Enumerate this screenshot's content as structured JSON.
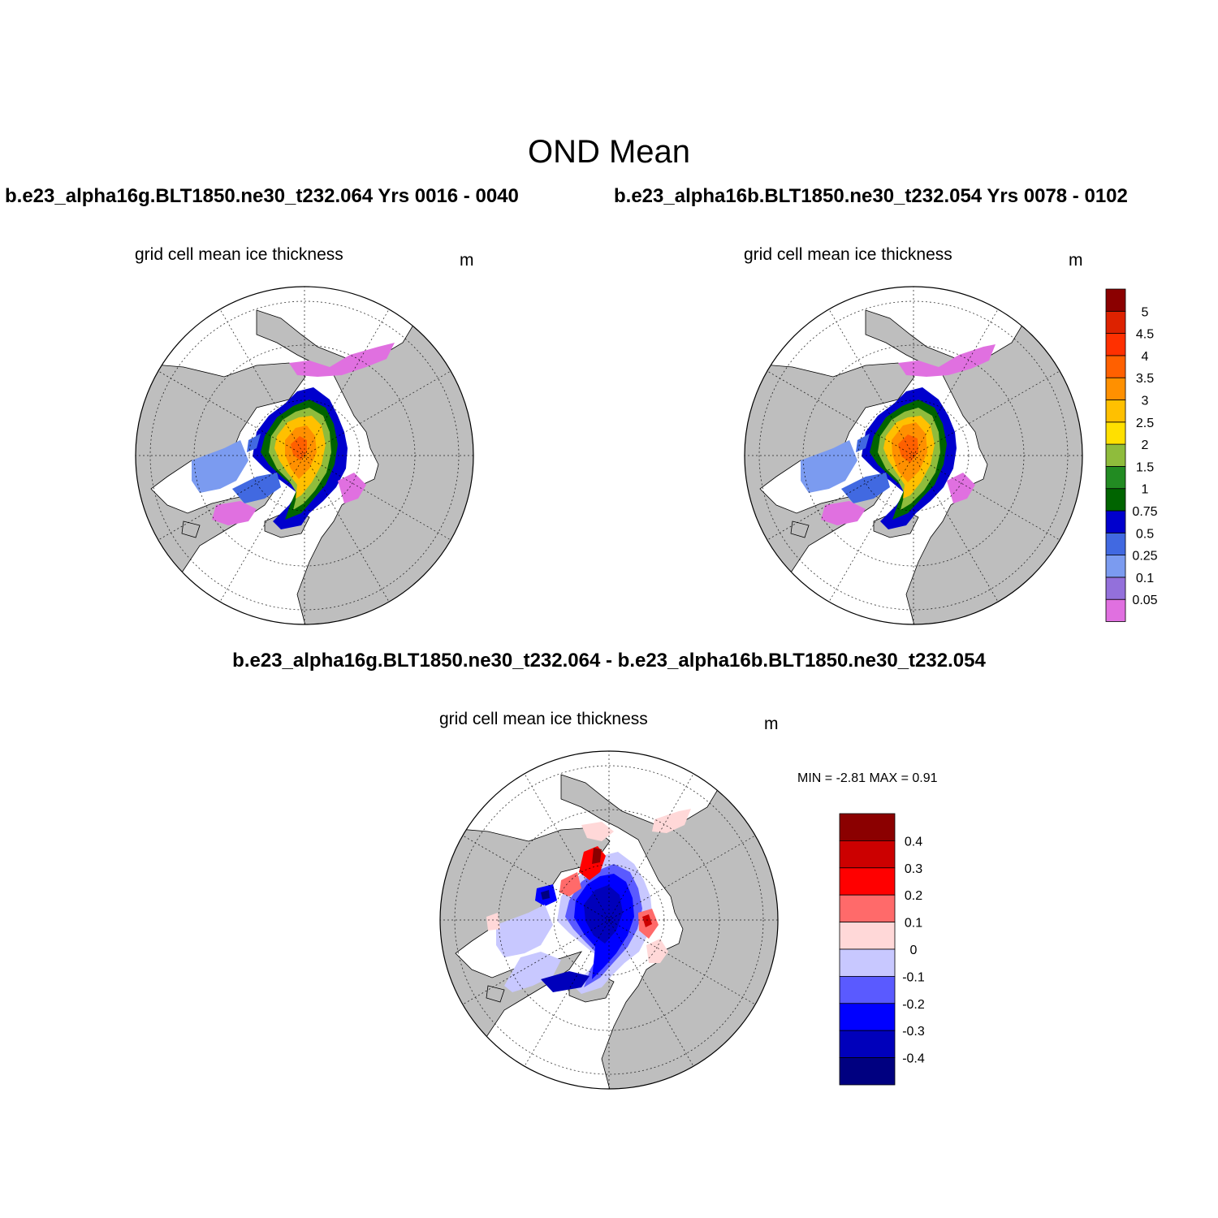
{
  "figure": {
    "title": "OND Mean",
    "left_case": "b.e23_alpha16g.BLT1850.ne30_t232.064  Yrs 0016 - 0040",
    "right_case": "b.e23_alpha16b.BLT1850.ne30_t232.054  Yrs 0078 - 0102",
    "diff_title": "b.e23_alpha16g.BLT1850.ne30_t232.064 - b.e23_alpha16b.BLT1850.ne30_t232.054"
  },
  "panels": {
    "left": {
      "label": "grid cell mean ice thickness",
      "unit": "m"
    },
    "right": {
      "label": "grid cell mean ice thickness",
      "unit": "m"
    },
    "diff": {
      "label": "grid cell mean ice thickness",
      "unit": "m",
      "minmax": "MIN =  -2.81 MAX =   0.91"
    }
  },
  "chart_data": [
    {
      "type": "heatmap",
      "projection": "north polar stereographic",
      "variable": "grid cell mean ice thickness",
      "unit": "m",
      "colorbar": {
        "levels": [
          "0.05",
          "0.1",
          "0.25",
          "0.5",
          "0.75",
          "1",
          "1.5",
          "2",
          "2.5",
          "3",
          "3.5",
          "4",
          "4.5",
          "5"
        ],
        "colors": [
          "#e070e0",
          "#9370db",
          "#7b9bf0",
          "#4169e1",
          "#0000cd",
          "#006400",
          "#228b22",
          "#8fbc3c",
          "#ffe000",
          "#ffc000",
          "#ff9000",
          "#ff6000",
          "#ff3000",
          "#dd2200",
          "#8b0000"
        ]
      }
    },
    {
      "type": "heatmap",
      "projection": "north polar stereographic",
      "variable": "grid cell mean ice thickness",
      "unit": "m",
      "min": -2.81,
      "max": 0.91,
      "colorbar": {
        "levels": [
          "0.4",
          "0.3",
          "0.2",
          "0.1",
          "0",
          "-0.1",
          "-0.2",
          "-0.3",
          "-0.4"
        ],
        "colors": [
          "#8b0000",
          "#cc0000",
          "#ff0000",
          "#ff6a6a",
          "#ffd8d8",
          "#c8c8ff",
          "#5a5aff",
          "#0000ff",
          "#0000bb",
          "#000080"
        ]
      }
    }
  ],
  "colors": {
    "land": "#bebebe",
    "ocean": "#ffffff"
  }
}
